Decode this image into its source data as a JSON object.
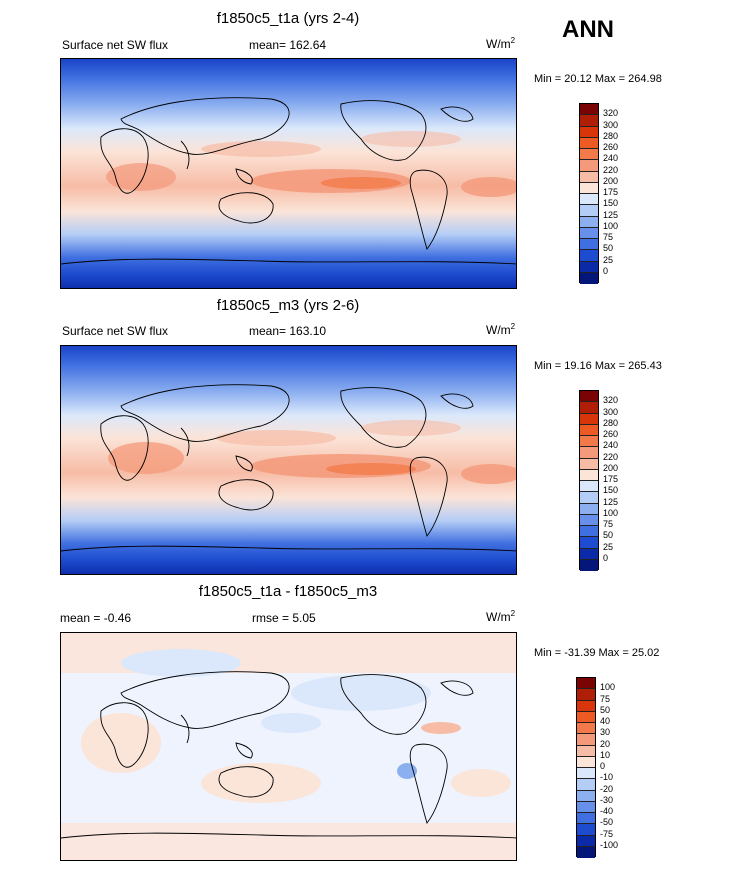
{
  "season": "ANN",
  "panels": [
    {
      "title": "f1850c5_t1a (yrs 2-4)",
      "left_label": "Surface net SW flux",
      "center_label": "mean= 162.64",
      "units_base": "W/m",
      "units_exp": "2",
      "minmax": "Min =  20.12 Max = 264.98",
      "colorbar_levels": [
        "320",
        "300",
        "280",
        "260",
        "240",
        "220",
        "200",
        "175",
        "150",
        "125",
        "100",
        "75",
        "50",
        "25",
        "0"
      ],
      "colorbar_colors": [
        "#7a0403",
        "#b01e05",
        "#d8360a",
        "#ee5a24",
        "#f27a4a",
        "#f4997a",
        "#f7bca6",
        "#fbe4d8",
        "#dbe8fb",
        "#b4cdf6",
        "#8caff0",
        "#6690ea",
        "#3f6fe0",
        "#1e4cd0",
        "#0b2aa8",
        "#041677"
      ]
    },
    {
      "title": "f1850c5_m3 (yrs 2-6)",
      "left_label": "Surface net SW flux",
      "center_label": "mean= 163.10",
      "units_base": "W/m",
      "units_exp": "2",
      "minmax": "Min =  19.16 Max = 265.43",
      "colorbar_levels": [
        "320",
        "300",
        "280",
        "260",
        "240",
        "220",
        "200",
        "175",
        "150",
        "125",
        "100",
        "75",
        "50",
        "25",
        "0"
      ],
      "colorbar_colors": [
        "#7a0403",
        "#b01e05",
        "#d8360a",
        "#ee5a24",
        "#f27a4a",
        "#f4997a",
        "#f7bca6",
        "#fbe4d8",
        "#dbe8fb",
        "#b4cdf6",
        "#8caff0",
        "#6690ea",
        "#3f6fe0",
        "#1e4cd0",
        "#0b2aa8",
        "#041677"
      ]
    },
    {
      "title": "f1850c5_t1a - f1850c5_m3",
      "left_label": "mean =  -0.46",
      "center_label": "rmse =   5.05",
      "units_base": "W/m",
      "units_exp": "2",
      "minmax": "Min = -31.39 Max =  25.02",
      "colorbar_levels": [
        "100",
        "75",
        "50",
        "40",
        "30",
        "20",
        "10",
        "0",
        "-10",
        "-20",
        "-30",
        "-40",
        "-50",
        "-75",
        "-100"
      ],
      "colorbar_colors": [
        "#7a0403",
        "#b01e05",
        "#d8360a",
        "#ee5a24",
        "#f27a4a",
        "#f4997a",
        "#f7bca6",
        "#fbe4d8",
        "#dbe8fb",
        "#b4cdf6",
        "#8caff0",
        "#6690ea",
        "#3f6fe0",
        "#1e4cd0",
        "#0b2aa8",
        "#041677"
      ]
    }
  ],
  "chart_data": [
    {
      "type": "heatmap",
      "title": "f1850c5_t1a (yrs 2-4)",
      "variable": "Surface net SW flux",
      "mean": 162.64,
      "min": 20.12,
      "max": 264.98,
      "units": "W/m2",
      "levels": [
        0,
        25,
        50,
        75,
        100,
        125,
        150,
        175,
        200,
        220,
        240,
        260,
        280,
        300,
        320
      ]
    },
    {
      "type": "heatmap",
      "title": "f1850c5_m3 (yrs 2-6)",
      "variable": "Surface net SW flux",
      "mean": 163.1,
      "min": 19.16,
      "max": 265.43,
      "units": "W/m2",
      "levels": [
        0,
        25,
        50,
        75,
        100,
        125,
        150,
        175,
        200,
        220,
        240,
        260,
        280,
        300,
        320
      ]
    },
    {
      "type": "heatmap",
      "title": "f1850c5_t1a - f1850c5_m3",
      "mean": -0.46,
      "rmse": 5.05,
      "min": -31.39,
      "max": 25.02,
      "units": "W/m2",
      "levels": [
        -100,
        -75,
        -50,
        -40,
        -30,
        -20,
        -10,
        0,
        10,
        20,
        30,
        40,
        50,
        75,
        100
      ]
    }
  ]
}
